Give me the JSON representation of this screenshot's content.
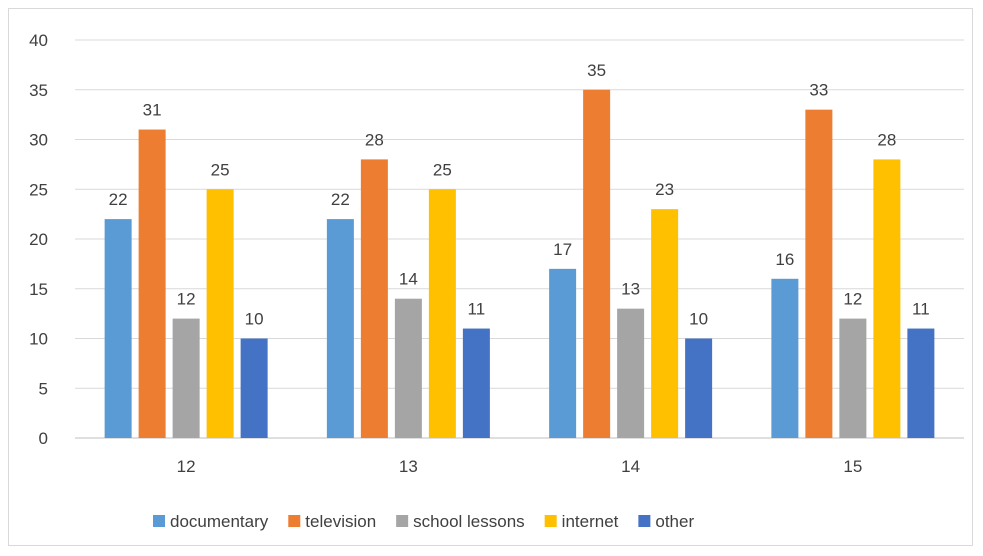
{
  "chart_data": {
    "type": "bar",
    "categories": [
      "12",
      "13",
      "14",
      "15"
    ],
    "series": [
      {
        "name": "documentary",
        "color": "#5B9BD5",
        "values": [
          22,
          22,
          17,
          16
        ]
      },
      {
        "name": "television",
        "color": "#ED7D31",
        "values": [
          31,
          28,
          35,
          33
        ]
      },
      {
        "name": "school lessons",
        "color": "#A5A5A5",
        "values": [
          12,
          14,
          13,
          12
        ]
      },
      {
        "name": "internet",
        "color": "#FFC000",
        "values": [
          25,
          25,
          23,
          28
        ]
      },
      {
        "name": "other",
        "color": "#4472C4",
        "values": [
          10,
          11,
          10,
          11
        ]
      }
    ],
    "title": "",
    "xlabel": "",
    "ylabel": "",
    "ylim": [
      0,
      40
    ],
    "yticks": [
      "0",
      "5",
      "10",
      "15",
      "20",
      "25",
      "30",
      "35",
      "40"
    ],
    "grid": true,
    "legend": "bottom"
  }
}
